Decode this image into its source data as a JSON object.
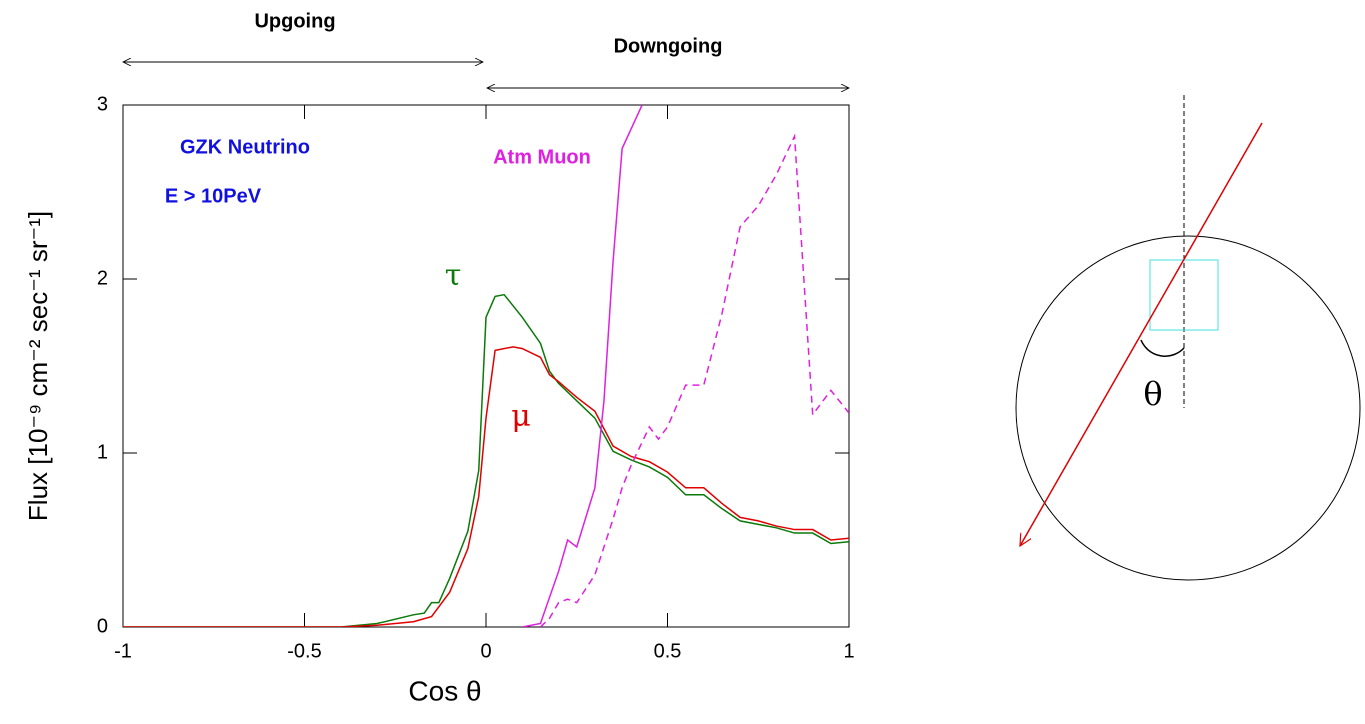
{
  "chart_data": {
    "type": "line",
    "xlabel": "Cos θ",
    "ylabel": "Flux [10⁻⁹ cm⁻² sec⁻¹ sr⁻¹]",
    "xlim": [
      -1,
      1
    ],
    "ylim": [
      0,
      3
    ],
    "xticks": [
      -1,
      -0.5,
      0,
      0.5,
      1
    ],
    "yticks": [
      0,
      1,
      2,
      3
    ],
    "series": [
      {
        "name": "τ",
        "color": "#0a7a0a",
        "dash": false,
        "x": [
          -1,
          -0.4,
          -0.3,
          -0.2,
          -0.17,
          -0.15,
          -0.13,
          -0.1,
          -0.05,
          -0.02,
          0,
          0.025,
          0.05,
          0.1,
          0.15,
          0.175,
          0.2,
          0.25,
          0.3,
          0.35,
          0.4,
          0.45,
          0.5,
          0.55,
          0.6,
          0.65,
          0.7,
          0.75,
          0.8,
          0.85,
          0.9,
          0.95,
          1
        ],
        "values": [
          0,
          0,
          0.02,
          0.07,
          0.08,
          0.14,
          0.14,
          0.28,
          0.55,
          0.9,
          1.78,
          1.9,
          1.91,
          1.78,
          1.63,
          1.47,
          1.4,
          1.3,
          1.2,
          1.01,
          0.96,
          0.92,
          0.86,
          0.76,
          0.76,
          0.68,
          0.61,
          0.59,
          0.57,
          0.54,
          0.54,
          0.48,
          0.49
        ]
      },
      {
        "name": "μ",
        "color": "#e00000",
        "dash": false,
        "x": [
          -1,
          -0.4,
          -0.3,
          -0.2,
          -0.15,
          -0.1,
          -0.05,
          -0.02,
          0,
          0.025,
          0.075,
          0.1,
          0.15,
          0.175,
          0.2,
          0.25,
          0.3,
          0.35,
          0.4,
          0.45,
          0.5,
          0.55,
          0.6,
          0.65,
          0.7,
          0.75,
          0.8,
          0.85,
          0.9,
          0.95,
          1
        ],
        "values": [
          0,
          0,
          0.01,
          0.03,
          0.06,
          0.2,
          0.45,
          0.75,
          1.2,
          1.59,
          1.61,
          1.6,
          1.55,
          1.45,
          1.41,
          1.32,
          1.24,
          1.04,
          0.98,
          0.95,
          0.89,
          0.8,
          0.8,
          0.71,
          0.63,
          0.61,
          0.58,
          0.56,
          0.56,
          0.5,
          0.51
        ]
      },
      {
        "name": "Atm Muon",
        "color": "#e020e0",
        "dash": false,
        "x": [
          0.1,
          0.15,
          0.2,
          0.225,
          0.25,
          0.3,
          0.325,
          0.35,
          0.375,
          0.43
        ],
        "values": [
          0,
          0.02,
          0.32,
          0.5,
          0.46,
          0.8,
          1.3,
          2.1,
          2.75,
          3.0
        ]
      },
      {
        "name": "Atm Muon",
        "color": "#e020e0",
        "dash": true,
        "x": [
          0.15,
          0.175,
          0.2,
          0.225,
          0.25,
          0.3,
          0.35,
          0.375,
          0.4,
          0.45,
          0.475,
          0.5,
          0.55,
          0.6,
          0.65,
          0.7,
          0.75,
          0.8,
          0.85,
          0.9,
          0.95,
          1
        ],
        "values": [
          0,
          0.05,
          0.14,
          0.16,
          0.14,
          0.3,
          0.62,
          0.8,
          0.93,
          1.15,
          1.08,
          1.15,
          1.39,
          1.39,
          1.8,
          2.3,
          2.42,
          2.6,
          2.82,
          1.22,
          1.36,
          1.23
        ]
      }
    ],
    "annotations": [
      {
        "text": "Upgoing",
        "color": "#000000"
      },
      {
        "text": "Downgoing",
        "color": "#000000"
      },
      {
        "text": "GZK Neutrino",
        "color": "#1010e0"
      },
      {
        "text": "E > 10PeV",
        "color": "#1010e0"
      },
      {
        "text": "Atm Muon",
        "color": "#e020e0"
      },
      {
        "text": "τ",
        "color": "#0a7a0a"
      },
      {
        "text": "μ",
        "color": "#e00000"
      }
    ]
  },
  "diagram": {
    "angle_label": "θ"
  }
}
